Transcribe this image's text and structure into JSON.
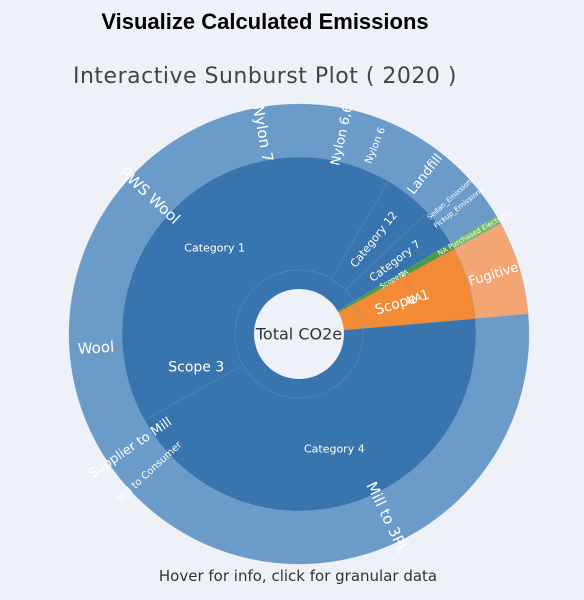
{
  "page": {
    "heading": "Visualize Calculated Emissions",
    "plot_title": "Interactive Sunburst Plot ( 2020 )",
    "footer": "Hover for info, click for granular data"
  },
  "chart_data": {
    "type": "sunburst",
    "center_label": "Total CO2e",
    "colors": {
      "blue_inner": "#3874ae",
      "blue_outer": "#6b9bc8",
      "green_inner": "#4c9b3e",
      "green_outer": "#74b866",
      "orange_inner": "#f28a36",
      "orange_outer": "#f3a574",
      "background": "#eef1f7"
    },
    "rings": [
      [
        {
          "label": "Scope 3",
          "value": 92.8,
          "color": "blue_inner"
        },
        {
          "label": "Scope 2",
          "value": 0.6,
          "color": "green_inner"
        },
        {
          "label": "Scope 1",
          "value": 6.6,
          "color": "orange_inner"
        }
      ],
      [
        {
          "label": "Category 4",
          "value": 43.3,
          "color": "blue_inner"
        },
        {
          "label": "Category 1",
          "value": 41.5,
          "color": "blue_inner"
        },
        {
          "label": "Category 12",
          "value": 4.5,
          "color": "blue_inner"
        },
        {
          "label": "Category 7",
          "value": 3.5,
          "color": "blue_inner"
        },
        {
          "label": "NA",
          "value": 0.6,
          "color": "green_inner"
        },
        {
          "label": "NA",
          "value": 6.6,
          "color": "orange_inner"
        }
      ],
      [
        {
          "label": "Mill to 3PL",
          "value": 38.5,
          "color": "blue_outer"
        },
        {
          "label": "Mill to Consumer",
          "value": 2.0,
          "color": "blue_outer"
        },
        {
          "label": "Supplier to Mill",
          "value": 2.8,
          "color": "blue_outer"
        },
        {
          "label": "Wool",
          "value": 14.0,
          "color": "blue_outer"
        },
        {
          "label": "RWS Wool",
          "value": 12.0,
          "color": "blue_outer"
        },
        {
          "label": "Nylon 7",
          "value": 8.5,
          "color": "blue_outer"
        },
        {
          "label": "Nylon 6,6",
          "value": 4.0,
          "color": "blue_outer"
        },
        {
          "label": "Nylon 6",
          "value": 1.5,
          "color": "blue_outer"
        },
        {
          "label": "",
          "value": 1.5,
          "color": "blue_outer"
        },
        {
          "label": "Landfill",
          "value": 4.5,
          "color": "blue_outer"
        },
        {
          "label": "Sedan_Emissions",
          "value": 1.0,
          "color": "blue_outer"
        },
        {
          "label": "Pickup_Emissions",
          "value": 0.9,
          "color": "blue_outer"
        },
        {
          "label": "",
          "value": 0.7,
          "color": "blue_outer"
        },
        {
          "label": "",
          "value": 0.9,
          "color": "blue_outer"
        },
        {
          "label": "NA Purchased Electricity",
          "value": 0.6,
          "color": "green_outer"
        },
        {
          "label": "Fugitive",
          "value": 6.6,
          "color": "orange_outer"
        }
      ]
    ],
    "legend": "none"
  }
}
